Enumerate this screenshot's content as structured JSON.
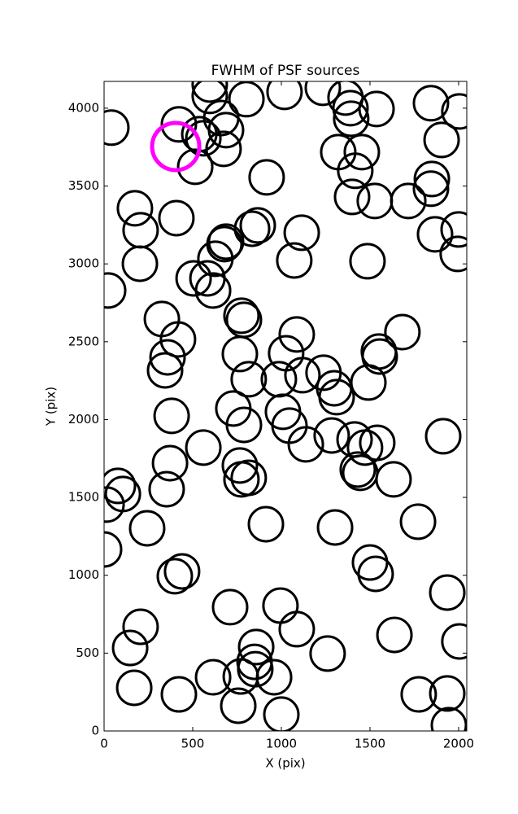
{
  "chart_data": {
    "type": "scatter",
    "title": "FWHM of PSF sources",
    "x_label": "X (pix)",
    "y_label": "Y (pix)",
    "xlim": [
      0,
      2046
    ],
    "ylim": [
      0,
      4172
    ],
    "xticks": [
      0,
      500,
      1000,
      1500,
      2000
    ],
    "yticks": [
      0,
      500,
      1000,
      1500,
      2000,
      2500,
      3000,
      3500,
      4000
    ],
    "series": [
      {
        "color": "#000000",
        "x": [
          41,
          422,
          596,
          596,
          661,
          537,
          560,
          688,
          674,
          514,
          803,
          1018,
          1234,
          1362,
          1390,
          1394,
          1537,
          1844,
          2004,
          1904,
          1321,
          1454,
          1417,
          917,
          1849,
          1844,
          1399,
          1527,
          1716,
          174,
          206,
          408,
          688,
          679,
          835,
          867,
          1115,
          1073,
          1486,
          1867,
          2000,
          1995,
          202,
          628,
          505,
          583,
          615,
          23,
          326,
          775,
          789,
          417,
          358,
          344,
          1087,
          1027,
          1683,
          1550,
          1555,
          766,
          816,
          986,
          1119,
          1238,
          1298,
          1312,
          1491,
          381,
          729,
          789,
          1009,
          1046,
          1138,
          1284,
          1413,
          1472,
          1541,
          1913,
          560,
          372,
          353,
          766,
          775,
          816,
          1431,
          1445,
          1633,
          78,
          106,
          14,
          243,
          913,
          1303,
          1771,
          0,
          440,
          399,
          1500,
          1532,
          711,
          995,
          1087,
          1936,
          206,
          147,
          1638,
          2004,
          858,
          849,
          853,
          1261,
          959,
          615,
          771,
          170,
          422,
          757,
          1775,
          1936,
          1000,
          1945
        ],
        "values": [
          3875,
          3896,
          4152,
          4079,
          3937,
          3833,
          3807,
          3859,
          3739,
          3624,
          4058,
          4105,
          4131,
          4068,
          4000,
          3932,
          3995,
          4032,
          3979,
          3796,
          3718,
          3718,
          3598,
          3556,
          3545,
          3483,
          3430,
          3404,
          3404,
          3357,
          3216,
          3294,
          3143,
          3127,
          3226,
          3247,
          3200,
          3022,
          3017,
          3190,
          3221,
          3064,
          3001,
          3033,
          2907,
          2907,
          2829,
          2829,
          2646,
          2667,
          2641,
          2515,
          2400,
          2316,
          2547,
          2426,
          2562,
          2437,
          2405,
          2421,
          2259,
          2259,
          2285,
          2301,
          2201,
          2144,
          2238,
          2024,
          2071,
          1966,
          2050,
          1961,
          1841,
          1898,
          1872,
          1820,
          1851,
          1893,
          1820,
          1720,
          1553,
          1705,
          1616,
          1626,
          1679,
          1658,
          1616,
          1574,
          1522,
          1454,
          1302,
          1328,
          1307,
          1344,
          1166,
          1025,
          994,
          1082,
          1009,
          795,
          805,
          654,
          889,
          669,
          533,
          617,
          575,
          539,
          444,
          397,
          497,
          345,
          345,
          350,
          277,
          235,
          162,
          235,
          241,
          105,
          37
        ]
      },
      {
        "color": "#ff00ff",
        "x": [
          404
        ],
        "values": [
          3754
        ]
      }
    ]
  }
}
